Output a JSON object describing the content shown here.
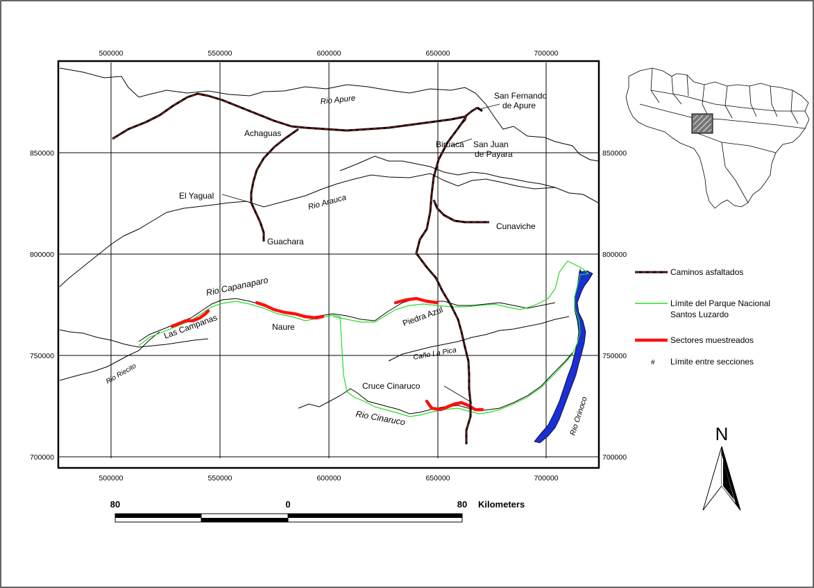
{
  "x_ticks": {
    "top": [
      "500000",
      "550000",
      "600000",
      "650000",
      "700000"
    ],
    "bottom": [
      "500000",
      "550000",
      "600000",
      "650000",
      "700000"
    ]
  },
  "y_ticks": {
    "left": [
      "850000",
      "800000",
      "750000",
      "700000"
    ],
    "right": [
      "850000",
      "800000",
      "750000",
      "700000"
    ]
  },
  "rivers": {
    "apure": "Rio Apure",
    "arauca": "Rio Arauca",
    "capanaparo": "Rio Capanaparo",
    "riecito": "Rio Riecito",
    "cinaruco": "Rio Cinaruco",
    "orinoco": "Rio Orinoco",
    "cano_la_pica": "Caño La Pica"
  },
  "places": {
    "san_fernando_1": "San Fernando",
    "san_fernando_2": "de Apure",
    "achaguas": "Achaguas",
    "biruaca": "Biruaca",
    "san_juan_1": "San Juan",
    "san_juan_2": "de Payara",
    "el_yagual": "El Yagual",
    "guachara": "Guachara",
    "cunaviche": "Cunaviche",
    "las_campanas": "Las Campanas",
    "naure": "Naure",
    "piedra_azul": "Piedra Azul",
    "cruce_cinaruco": "Cruce Cinaruco"
  },
  "legend": {
    "roads": "Caminos asfaltados",
    "park_line1": "Límite del Parque Nacional",
    "park_line2": "Santos Luzardo",
    "sampled": "Sectores muestreados",
    "section_symbol": "#",
    "sections": "Límite entre secciones"
  },
  "scale_bar": {
    "left": "80",
    "middle": "0",
    "right": "80",
    "unit": "Kilometers"
  },
  "north": "N",
  "colors": {
    "road": "#000000",
    "road_core": "#d42020",
    "park_boundary": "#22dd22",
    "sampled": "#ff1010",
    "orinoco_fill": "#1a2fd6",
    "grid": "#000000"
  }
}
